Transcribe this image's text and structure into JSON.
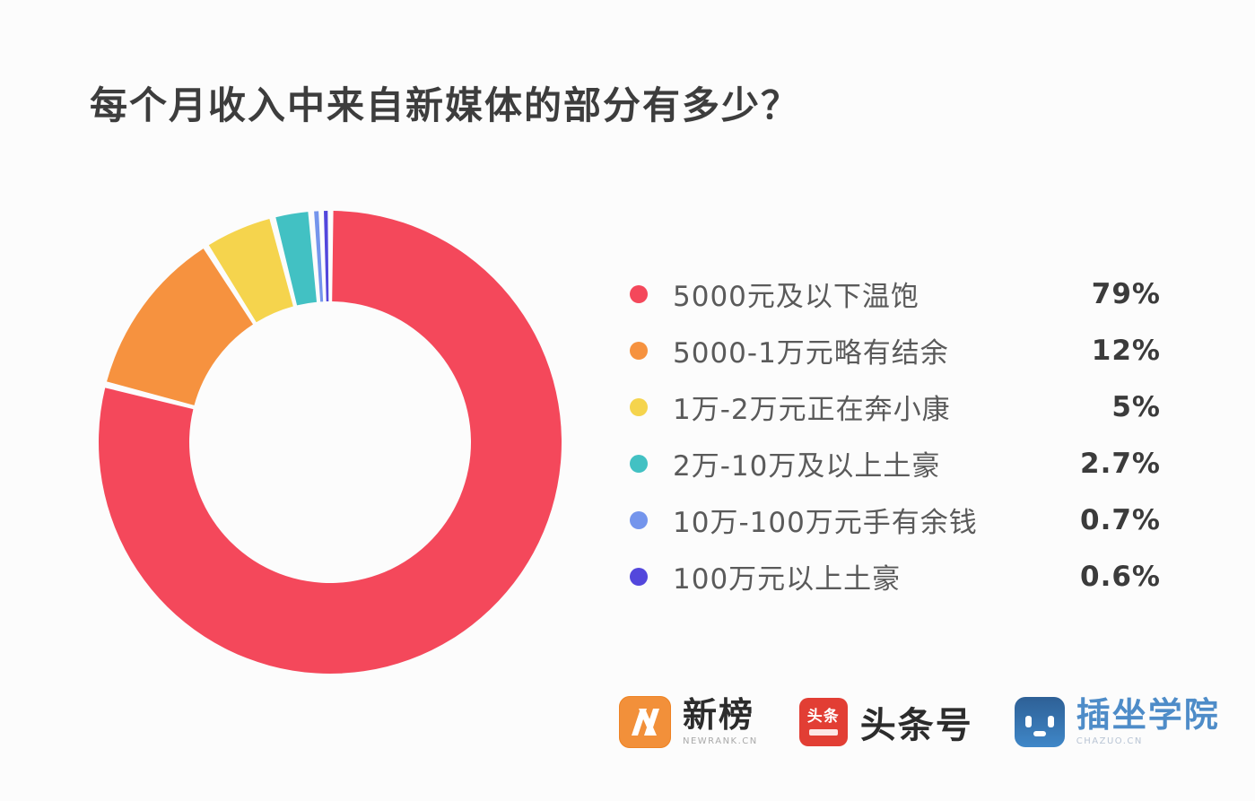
{
  "title": "每个月收入中来自新媒体的部分有多少？",
  "chart_data": {
    "type": "pie",
    "subtype": "donut",
    "title": "每个月收入中来自新媒体的部分有多少？",
    "total": 100,
    "start_angle_deg": 0,
    "direction": "clockwise",
    "hole_radius_ratio": 0.61,
    "legend_position": "right",
    "series": [
      {
        "label": "5000元及以下温饱",
        "value": 79,
        "display": "79%",
        "color": "#f4485b"
      },
      {
        "label": "5000-1万元略有结余",
        "value": 12,
        "display": "12%",
        "color": "#f6923f"
      },
      {
        "label": "1万-2万元正在奔小康",
        "value": 5,
        "display": "5%",
        "color": "#f5d44d"
      },
      {
        "label": "2万-10万及以上土豪",
        "value": 2.7,
        "display": "2.7%",
        "color": "#42c1c3"
      },
      {
        "label": "10万-100万元手有余钱",
        "value": 0.7,
        "display": "0.7%",
        "color": "#7495ec"
      },
      {
        "label": "100万元以上土豪",
        "value": 0.6,
        "display": "0.6%",
        "color": "#5347dc"
      }
    ]
  },
  "footer": {
    "logos": [
      {
        "name": "newrank",
        "text": "新榜",
        "subtext": "NEWRANK.CN",
        "icon_color": "#ee8325"
      },
      {
        "name": "toutiao",
        "text": "头条号",
        "icon_text": "头条",
        "icon_color": "#e23e34"
      },
      {
        "name": "chazuo",
        "text": "插坐学院",
        "subtext": "CHAZUO.CN",
        "icon_color": "#3f87c8"
      }
    ]
  }
}
